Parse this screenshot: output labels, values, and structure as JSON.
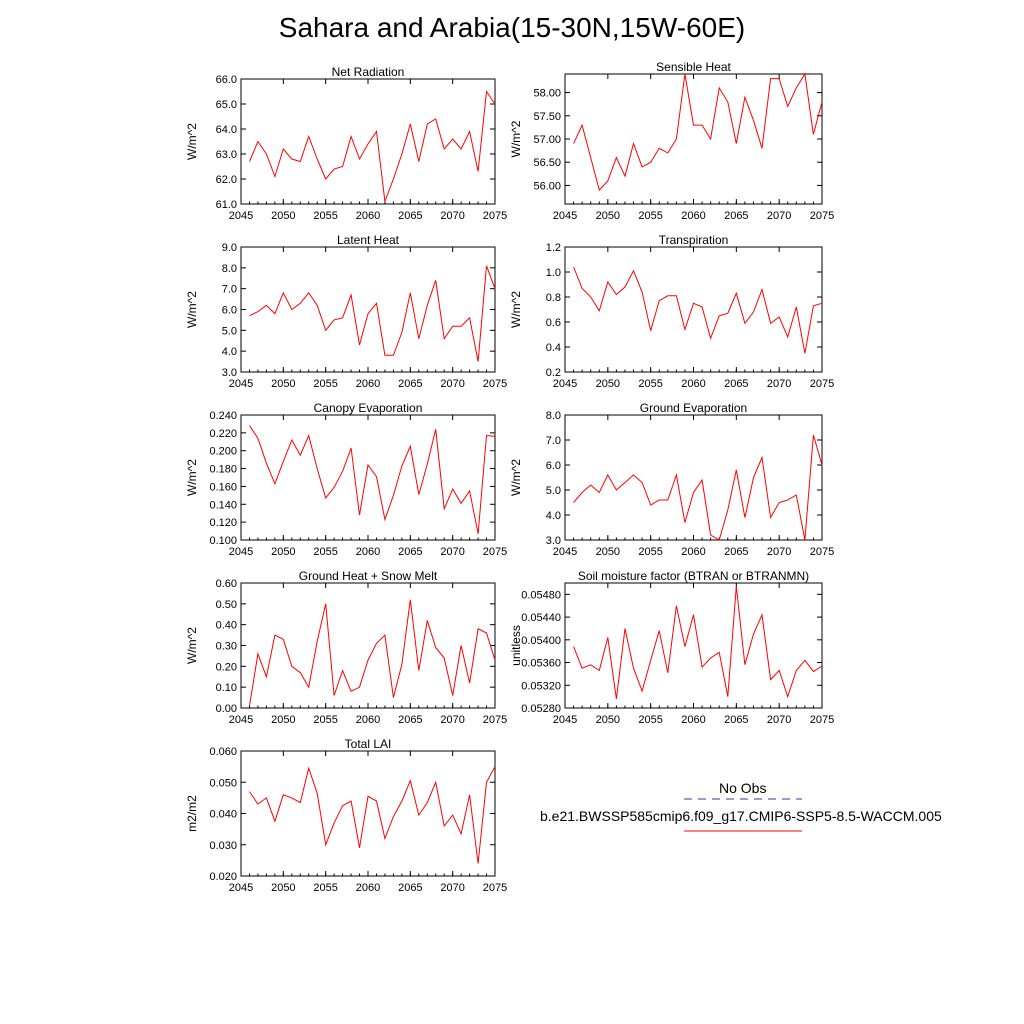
{
  "page": {
    "title": "Sahara and Arabia(15-30N,15W-60E)"
  },
  "legend": {
    "obs_label": "No Obs",
    "obs_color": "#3333aa",
    "model_label": "b.e21.BWSSP585cmip6.f09_g17.CMIP6-SSP5-8.5-WACCM.005",
    "model_color": "#ff0000"
  },
  "colors": {
    "series": "#ff0000",
    "axis": "#000000"
  },
  "chart_data": [
    {
      "type": "line",
      "title": "Net Radiation",
      "ylabel": "W/m^2",
      "xlim": [
        2045,
        2075
      ],
      "ylim": [
        61.0,
        66.0
      ],
      "xticks": [
        "2045",
        "2050",
        "2055",
        "2060",
        "2065",
        "2070",
        "2075"
      ],
      "yticks": [
        "61.0",
        "62.0",
        "63.0",
        "64.0",
        "65.0",
        "66.0"
      ],
      "x": [
        2046,
        2047,
        2048,
        2049,
        2050,
        2051,
        2052,
        2053,
        2054,
        2055,
        2056,
        2057,
        2058,
        2059,
        2060,
        2061,
        2062,
        2063,
        2064,
        2065,
        2066,
        2067,
        2068,
        2069,
        2070,
        2071,
        2072,
        2073,
        2074,
        2075
      ],
      "values": [
        62.7,
        63.5,
        63.0,
        62.1,
        63.2,
        62.8,
        62.7,
        63.7,
        62.8,
        62.0,
        62.4,
        62.5,
        63.7,
        62.8,
        63.4,
        63.9,
        61.1,
        62.0,
        63.0,
        64.2,
        62.7,
        64.2,
        64.4,
        63.2,
        63.6,
        63.2,
        63.9,
        62.3,
        65.5,
        65.0
      ]
    },
    {
      "type": "line",
      "title": "Sensible Heat",
      "ylabel": "W/m^2",
      "xlim": [
        2045,
        2075
      ],
      "ylim": [
        55.6,
        58.4
      ],
      "xticks": [
        "2045",
        "2050",
        "2055",
        "2060",
        "2065",
        "2070",
        "2075"
      ],
      "yticks": [
        "56.00",
        "56.50",
        "57.00",
        "57.50",
        "58.00"
      ],
      "x": [
        2046,
        2047,
        2048,
        2049,
        2050,
        2051,
        2052,
        2053,
        2054,
        2055,
        2056,
        2057,
        2058,
        2059,
        2060,
        2061,
        2062,
        2063,
        2064,
        2065,
        2066,
        2067,
        2068,
        2069,
        2070,
        2071,
        2072,
        2073,
        2074,
        2075
      ],
      "values": [
        56.9,
        57.3,
        56.6,
        55.9,
        56.1,
        56.6,
        56.2,
        56.9,
        56.4,
        56.5,
        56.8,
        56.7,
        57.0,
        58.4,
        57.3,
        57.3,
        57.0,
        58.1,
        57.8,
        56.9,
        57.9,
        57.4,
        56.8,
        58.3,
        58.3,
        57.7,
        58.1,
        58.4,
        57.1,
        57.8
      ]
    },
    {
      "type": "line",
      "title": "Latent Heat",
      "ylabel": "W/m^2",
      "xlim": [
        2045,
        2075
      ],
      "ylim": [
        3.0,
        9.0
      ],
      "xticks": [
        "2045",
        "2050",
        "2055",
        "2060",
        "2065",
        "2070",
        "2075"
      ],
      "yticks": [
        "3.0",
        "4.0",
        "5.0",
        "6.0",
        "7.0",
        "8.0",
        "9.0"
      ],
      "x": [
        2046,
        2047,
        2048,
        2049,
        2050,
        2051,
        2052,
        2053,
        2054,
        2055,
        2056,
        2057,
        2058,
        2059,
        2060,
        2061,
        2062,
        2063,
        2064,
        2065,
        2066,
        2067,
        2068,
        2069,
        2070,
        2071,
        2072,
        2073,
        2074,
        2075
      ],
      "values": [
        5.7,
        5.9,
        6.2,
        5.8,
        6.8,
        6.0,
        6.3,
        6.8,
        6.2,
        5.0,
        5.5,
        5.6,
        6.7,
        4.3,
        5.8,
        6.3,
        3.8,
        3.8,
        4.9,
        6.8,
        4.6,
        6.2,
        7.4,
        4.6,
        5.2,
        5.2,
        5.6,
        3.5,
        8.1,
        7.0
      ]
    },
    {
      "type": "line",
      "title": "Transpiration",
      "ylabel": "W/m^2",
      "xlim": [
        2045,
        2075
      ],
      "ylim": [
        0.2,
        1.2
      ],
      "xticks": [
        "2045",
        "2050",
        "2055",
        "2060",
        "2065",
        "2070",
        "2075"
      ],
      "yticks": [
        "0.2",
        "0.4",
        "0.6",
        "0.8",
        "1.0",
        "1.2"
      ],
      "x": [
        2046,
        2047,
        2048,
        2049,
        2050,
        2051,
        2052,
        2053,
        2054,
        2055,
        2056,
        2057,
        2058,
        2059,
        2060,
        2061,
        2062,
        2063,
        2064,
        2065,
        2066,
        2067,
        2068,
        2069,
        2070,
        2071,
        2072,
        2073,
        2074,
        2075
      ],
      "values": [
        1.04,
        0.87,
        0.8,
        0.69,
        0.92,
        0.82,
        0.88,
        1.01,
        0.84,
        0.53,
        0.77,
        0.81,
        0.81,
        0.54,
        0.75,
        0.72,
        0.47,
        0.65,
        0.67,
        0.83,
        0.59,
        0.68,
        0.86,
        0.59,
        0.64,
        0.48,
        0.72,
        0.35,
        0.73,
        0.75
      ]
    },
    {
      "type": "line",
      "title": "Canopy Evaporation",
      "ylabel": "W/m^2",
      "xlim": [
        2045,
        2075
      ],
      "ylim": [
        0.1,
        0.24
      ],
      "xticks": [
        "2045",
        "2050",
        "2055",
        "2060",
        "2065",
        "2070",
        "2075"
      ],
      "yticks": [
        "0.100",
        "0.120",
        "0.140",
        "0.160",
        "0.180",
        "0.200",
        "0.220",
        "0.240"
      ],
      "x": [
        2046,
        2047,
        2048,
        2049,
        2050,
        2051,
        2052,
        2053,
        2054,
        2055,
        2056,
        2057,
        2058,
        2059,
        2060,
        2061,
        2062,
        2063,
        2064,
        2065,
        2066,
        2067,
        2068,
        2069,
        2070,
        2071,
        2072,
        2073,
        2074,
        2075
      ],
      "values": [
        0.228,
        0.214,
        0.186,
        0.163,
        0.188,
        0.212,
        0.195,
        0.217,
        0.18,
        0.147,
        0.159,
        0.177,
        0.203,
        0.128,
        0.184,
        0.171,
        0.123,
        0.15,
        0.183,
        0.205,
        0.151,
        0.185,
        0.224,
        0.135,
        0.157,
        0.141,
        0.155,
        0.107,
        0.217,
        0.216
      ]
    },
    {
      "type": "line",
      "title": "Ground Evaporation",
      "ylabel": "W/m^2",
      "xlim": [
        2045,
        2075
      ],
      "ylim": [
        3.0,
        8.0
      ],
      "xticks": [
        "2045",
        "2050",
        "2055",
        "2060",
        "2065",
        "2070",
        "2075"
      ],
      "yticks": [
        "3.0",
        "4.0",
        "5.0",
        "6.0",
        "7.0",
        "8.0"
      ],
      "x": [
        2046,
        2047,
        2048,
        2049,
        2050,
        2051,
        2052,
        2053,
        2054,
        2055,
        2056,
        2057,
        2058,
        2059,
        2060,
        2061,
        2062,
        2063,
        2064,
        2065,
        2066,
        2067,
        2068,
        2069,
        2070,
        2071,
        2072,
        2073,
        2074,
        2075
      ],
      "values": [
        4.5,
        4.9,
        5.2,
        4.9,
        5.6,
        5.0,
        5.3,
        5.6,
        5.3,
        4.4,
        4.6,
        4.6,
        5.6,
        3.7,
        4.9,
        5.4,
        3.2,
        3.0,
        4.2,
        5.8,
        3.9,
        5.5,
        6.3,
        3.9,
        4.5,
        4.6,
        4.8,
        3.0,
        7.2,
        6.0
      ]
    },
    {
      "type": "line",
      "title": "Ground Heat + Snow Melt",
      "ylabel": "W/m^2",
      "xlim": [
        2045,
        2075
      ],
      "ylim": [
        0.0,
        0.6
      ],
      "xticks": [
        "2045",
        "2050",
        "2055",
        "2060",
        "2065",
        "2070",
        "2075"
      ],
      "yticks": [
        "0.00",
        "0.10",
        "0.20",
        "0.30",
        "0.40",
        "0.50",
        "0.60"
      ],
      "x": [
        2046,
        2047,
        2048,
        2049,
        2050,
        2051,
        2052,
        2053,
        2054,
        2055,
        2056,
        2057,
        2058,
        2059,
        2060,
        2061,
        2062,
        2063,
        2064,
        2065,
        2066,
        2067,
        2068,
        2069,
        2070,
        2071,
        2072,
        2073,
        2074,
        2075
      ],
      "values": [
        0.01,
        0.26,
        0.15,
        0.35,
        0.33,
        0.2,
        0.17,
        0.1,
        0.32,
        0.5,
        0.06,
        0.18,
        0.08,
        0.1,
        0.23,
        0.31,
        0.35,
        0.05,
        0.21,
        0.52,
        0.18,
        0.42,
        0.29,
        0.24,
        0.06,
        0.3,
        0.12,
        0.38,
        0.36,
        0.23
      ]
    },
    {
      "type": "line",
      "title": "Soil moisture factor (BTRAN or BTRANMN)",
      "ylabel": "unitless",
      "xlim": [
        2045,
        2075
      ],
      "ylim": [
        0.0528,
        0.055
      ],
      "xticks": [
        "2045",
        "2050",
        "2055",
        "2060",
        "2065",
        "2070",
        "2075"
      ],
      "yticks": [
        "0.05280",
        "0.05320",
        "0.05360",
        "0.05400",
        "0.05440",
        "0.05480"
      ],
      "x": [
        2046,
        2047,
        2048,
        2049,
        2050,
        2051,
        2052,
        2053,
        2054,
        2055,
        2056,
        2057,
        2058,
        2059,
        2060,
        2061,
        2062,
        2063,
        2064,
        2065,
        2066,
        2067,
        2068,
        2069,
        2070,
        2071,
        2072,
        2073,
        2074,
        2075
      ],
      "values": [
        0.05388,
        0.0535,
        0.05356,
        0.05346,
        0.05404,
        0.05296,
        0.0542,
        0.0535,
        0.0531,
        0.05364,
        0.05416,
        0.05342,
        0.0546,
        0.05388,
        0.05444,
        0.05352,
        0.05368,
        0.05378,
        0.053,
        0.05494,
        0.05356,
        0.0541,
        0.05444,
        0.0533,
        0.05346,
        0.053,
        0.05346,
        0.05364,
        0.05344,
        0.05354
      ]
    },
    {
      "type": "line",
      "title": "Total LAI",
      "ylabel": "m2/m2",
      "xlim": [
        2045,
        2075
      ],
      "ylim": [
        0.02,
        0.06
      ],
      "xticks": [
        "2045",
        "2050",
        "2055",
        "2060",
        "2065",
        "2070",
        "2075"
      ],
      "yticks": [
        "0.020",
        "0.030",
        "0.040",
        "0.050",
        "0.060"
      ],
      "x": [
        2046,
        2047,
        2048,
        2049,
        2050,
        2051,
        2052,
        2053,
        2054,
        2055,
        2056,
        2057,
        2058,
        2059,
        2060,
        2061,
        2062,
        2063,
        2064,
        2065,
        2066,
        2067,
        2068,
        2069,
        2070,
        2071,
        2072,
        2073,
        2074,
        2075
      ],
      "values": [
        0.047,
        0.043,
        0.045,
        0.0375,
        0.046,
        0.045,
        0.0435,
        0.0545,
        0.0465,
        0.03,
        0.037,
        0.0425,
        0.044,
        0.029,
        0.0455,
        0.044,
        0.032,
        0.039,
        0.044,
        0.0505,
        0.0395,
        0.0435,
        0.05,
        0.036,
        0.0395,
        0.0335,
        0.046,
        0.024,
        0.05,
        0.055
      ]
    }
  ]
}
